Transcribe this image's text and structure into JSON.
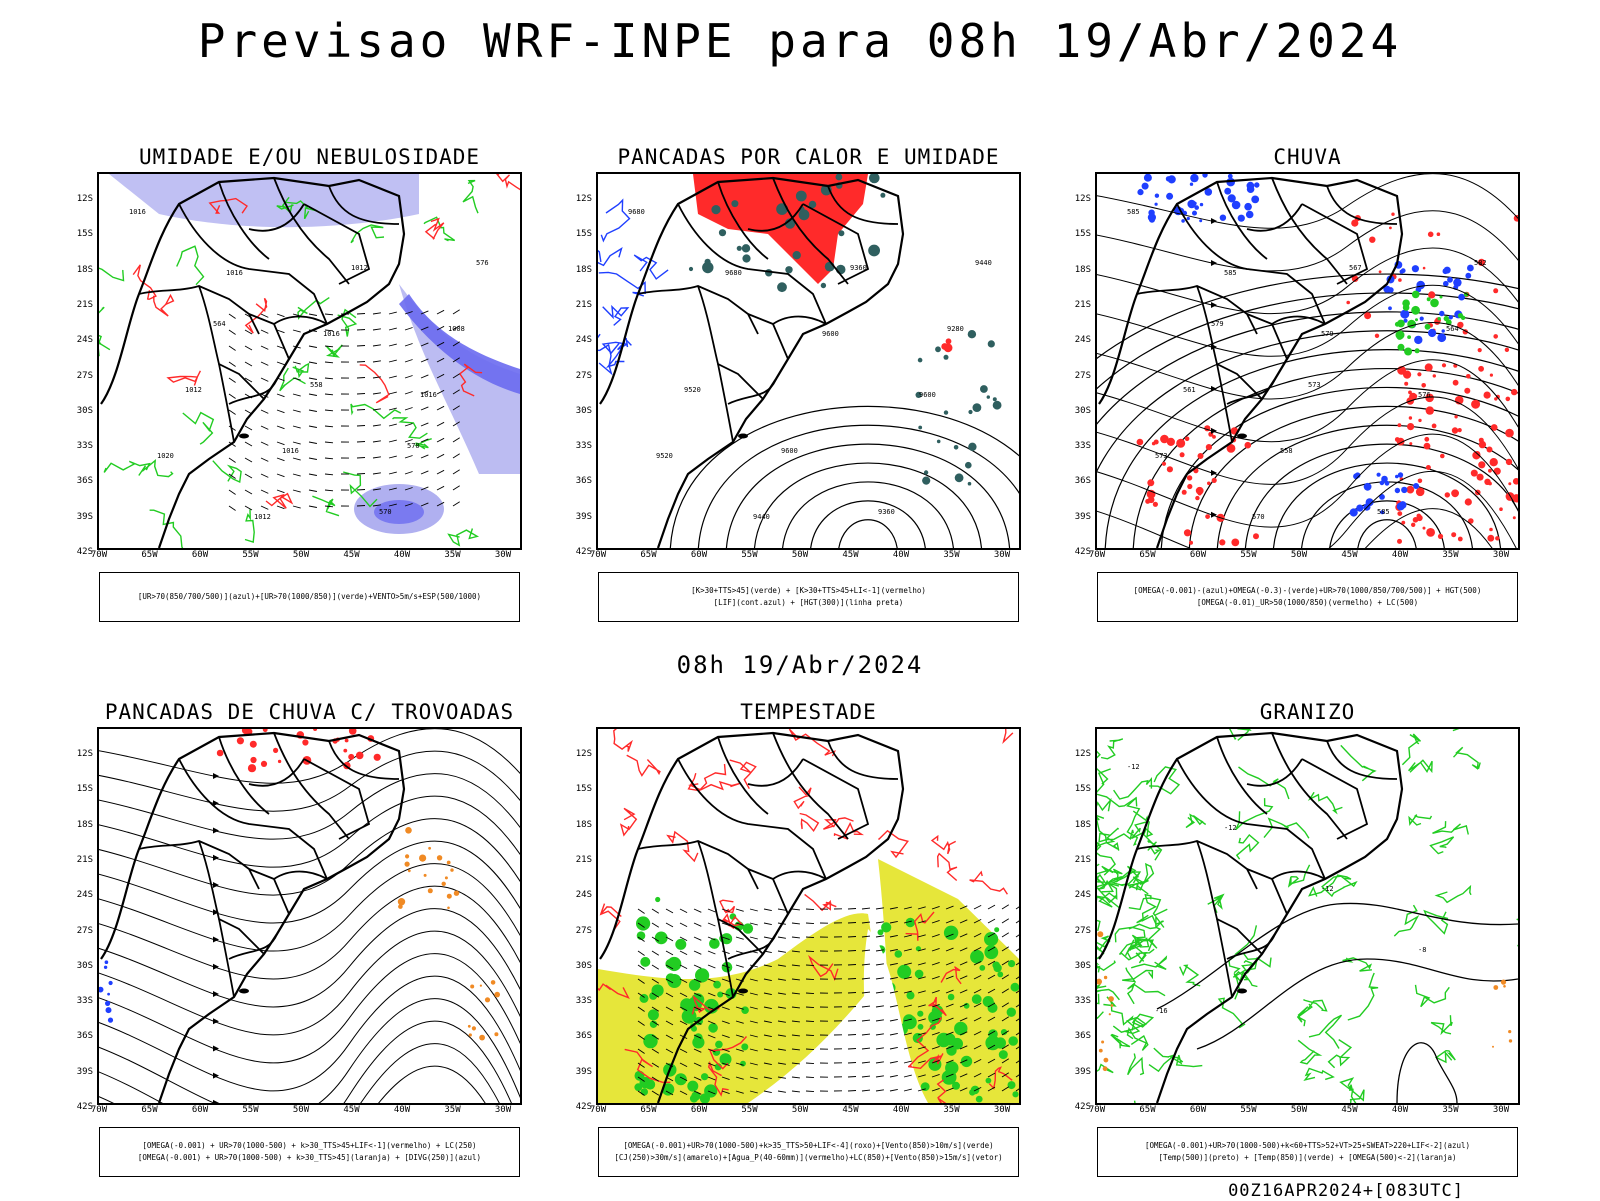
{
  "title": "Previsao WRF-INPE  para 08h 19/Abr/2024",
  "subtitle": "08h 19/Abr/2024",
  "footer": "00Z16APR2024+[083UTC]",
  "lat_labels": [
    "12S",
    "15S",
    "18S",
    "21S",
    "24S",
    "27S",
    "30S",
    "33S",
    "36S",
    "39S",
    "42S"
  ],
  "lon_labels": [
    "70W",
    "65W",
    "60W",
    "55W",
    "50W",
    "45W",
    "40W",
    "35W",
    "30W"
  ],
  "panels": [
    {
      "title": "UMIDADE E/OU NEBULOSIDADE",
      "legend": [
        "[UR>70(850/700/500)](azul)+[UR>70(1000/850)](verde)+VENTO>5m/s+ESP(500/1000)"
      ],
      "contour_labels": [
        "1016",
        "1016",
        "1016",
        "1016",
        "1020",
        "1012",
        "1012",
        "1008",
        "1012",
        "1016",
        "570",
        "576",
        "564",
        "558",
        "570"
      ]
    },
    {
      "title": "PANCADAS POR CALOR E UMIDADE",
      "legend": [
        "[K>30+TTS>45](verde) + [K>30+TTS>45+LI<-1](vermelho)",
        "[LIF](cont.azul) + [HGT(300)](linha preta)"
      ],
      "contour_labels": [
        "9680",
        "9680",
        "9600",
        "9600",
        "9520",
        "9440",
        "9360",
        "9280",
        "9520",
        "9600",
        "9360",
        "9440"
      ]
    },
    {
      "title": "CHUVA",
      "legend": [
        "[OMEGA(-0.001)-(azul)+OMEGA(-0.3)-(verde)+UR>70(1000/850/700/500)] + HGT(500)",
        "[OMEGA(-0.01)_UR>50(1000/850)(vermelho) + LC(500)"
      ],
      "contour_labels": [
        "585",
        "585",
        "579",
        "576",
        "573",
        "570",
        "567",
        "564",
        "561",
        "558",
        "585",
        "582",
        "579",
        "573"
      ]
    },
    {
      "title": "PANCADAS DE CHUVA C/ TROVOADAS",
      "legend": [
        "[OMEGA(-0.001) + UR>70(1000-500) + k>30_TTS>45+LIF<-1](vermelho) + LC(250)",
        "[OMEGA(-0.001) + UR>70(1000-500) + k>30_TTS>45](laranja) + [DIVG(250)](azul)"
      ],
      "contour_labels": []
    },
    {
      "title": "TEMPESTADE",
      "legend": [
        "[OMEGA(-0.001)+UR>70(1000-500)+k>35_TTS>50+LIF<-4](roxo)+[Vento(850)>10m/s](verde)",
        "[CJ(250)>30m/s](amarelo)+[Agua_P(40-60mm)](vermelho)+LC(850)+[Vento(850)>15m/s](vetor)"
      ],
      "contour_labels": []
    },
    {
      "title": "GRANIZO",
      "legend": [
        "[OMEGA(-0.001)+UR>70(1000-500)+k<60+TTS>52+VT>25+SWEAT>220+LIF<-2](azul)",
        "[Temp(500)](preto) + [Temp(850)](verde) + [OMEGA(500)<-2](laranja)"
      ],
      "contour_labels": [
        "-12",
        "-12",
        "-12",
        "-8",
        "-16"
      ]
    }
  ],
  "colors": {
    "blue": "#1f3fff",
    "green": "#22cc22",
    "red": "#ff2a2a",
    "lilac": "#b0b0f0",
    "yellow": "#e6e63a",
    "orange": "#f08a24",
    "teal": "#2f5f5f"
  }
}
